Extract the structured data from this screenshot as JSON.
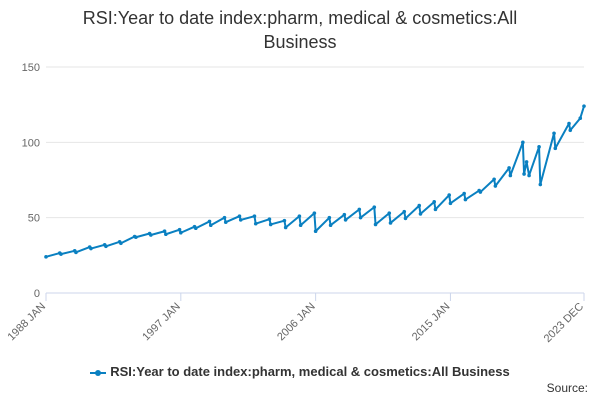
{
  "chart_data": {
    "type": "line",
    "title": "RSI:Year to date index:pharm, medical & cosmetics:All Business",
    "title_lines": [
      "RSI:Year to date index:pharm, medical & cosmetics:All",
      "Business"
    ],
    "xlabel": "",
    "ylabel": "",
    "ylim": [
      0,
      150
    ],
    "yticks": [
      "0",
      "50",
      "100",
      "150"
    ],
    "xlim": [
      "1988-01",
      "2023-12"
    ],
    "xticks": [
      {
        "label": "1988 JAN",
        "date": "1988-01"
      },
      {
        "label": "1997 JAN",
        "date": "1997-01"
      },
      {
        "label": "2006 JAN",
        "date": "2006-01"
      },
      {
        "label": "2015 JAN",
        "date": "2015-01"
      },
      {
        "label": "2023 DEC",
        "date": "2023-12"
      }
    ],
    "grid": true,
    "legend_position": "bottom",
    "series": [
      {
        "name": "RSI:Year to date index:pharm, medical & cosmetics:All Business",
        "color": "#0a80c1",
        "points": [
          [
            "1988-01",
            24.0
          ],
          [
            "1988-12",
            26.5
          ],
          [
            "1989-01",
            25.8
          ],
          [
            "1989-12",
            28.0
          ],
          [
            "1990-01",
            27.0
          ],
          [
            "1990-12",
            30.5
          ],
          [
            "1991-01",
            29.5
          ],
          [
            "1991-12",
            32.0
          ],
          [
            "1992-01",
            31.0
          ],
          [
            "1992-12",
            34.0
          ],
          [
            "1993-01",
            33.0
          ],
          [
            "1993-12",
            37.5
          ],
          [
            "1994-01",
            37.0
          ],
          [
            "1994-12",
            39.5
          ],
          [
            "1995-01",
            38.5
          ],
          [
            "1995-12",
            41.0
          ],
          [
            "1996-01",
            39.0
          ],
          [
            "1996-12",
            42.0
          ],
          [
            "1997-01",
            40.0
          ],
          [
            "1997-12",
            44.0
          ],
          [
            "1998-01",
            43.0
          ],
          [
            "1998-12",
            47.5
          ],
          [
            "1999-01",
            45.0
          ],
          [
            "1999-12",
            50.0
          ],
          [
            "2000-01",
            47.0
          ],
          [
            "2000-12",
            51.0
          ],
          [
            "2001-01",
            48.5
          ],
          [
            "2001-12",
            51.0
          ],
          [
            "2002-01",
            46.0
          ],
          [
            "2002-12",
            49.0
          ],
          [
            "2003-01",
            45.5
          ],
          [
            "2003-12",
            48.0
          ],
          [
            "2004-01",
            43.5
          ],
          [
            "2004-12",
            51.0
          ],
          [
            "2005-01",
            45.0
          ],
          [
            "2005-12",
            53.0
          ],
          [
            "2006-01",
            41.0
          ],
          [
            "2006-12",
            50.0
          ],
          [
            "2007-01",
            45.0
          ],
          [
            "2007-12",
            52.0
          ],
          [
            "2008-01",
            48.5
          ],
          [
            "2008-12",
            55.5
          ],
          [
            "2009-01",
            50.0
          ],
          [
            "2009-12",
            57.0
          ],
          [
            "2010-01",
            45.5
          ],
          [
            "2010-12",
            53.0
          ],
          [
            "2011-01",
            46.5
          ],
          [
            "2011-12",
            54.0
          ],
          [
            "2012-01",
            49.5
          ],
          [
            "2012-12",
            58.0
          ],
          [
            "2013-01",
            52.5
          ],
          [
            "2013-12",
            60.5
          ],
          [
            "2014-01",
            55.5
          ],
          [
            "2014-12",
            65.0
          ],
          [
            "2015-01",
            59.5
          ],
          [
            "2015-12",
            66.0
          ],
          [
            "2016-01",
            62.0
          ],
          [
            "2016-12",
            68.0
          ],
          [
            "2017-01",
            67.0
          ],
          [
            "2017-12",
            75.5
          ],
          [
            "2018-01",
            71.0
          ],
          [
            "2018-12",
            83.0
          ],
          [
            "2019-01",
            78.0
          ],
          [
            "2019-11",
            100.0
          ],
          [
            "2019-12",
            79.0
          ],
          [
            "2020-02",
            87.0
          ],
          [
            "2020-04",
            78.0
          ],
          [
            "2020-12",
            97.0
          ],
          [
            "2021-01",
            72.0
          ],
          [
            "2021-12",
            106.0
          ],
          [
            "2022-01",
            96.0
          ],
          [
            "2022-12",
            112.5
          ],
          [
            "2023-01",
            108.0
          ],
          [
            "2023-09",
            116.0
          ],
          [
            "2023-12",
            124.0
          ]
        ]
      }
    ]
  },
  "legend": {
    "label": "RSI:Year to date index:pharm, medical & cosmetics:All Business"
  },
  "footer": {
    "source_label": "Source:"
  }
}
